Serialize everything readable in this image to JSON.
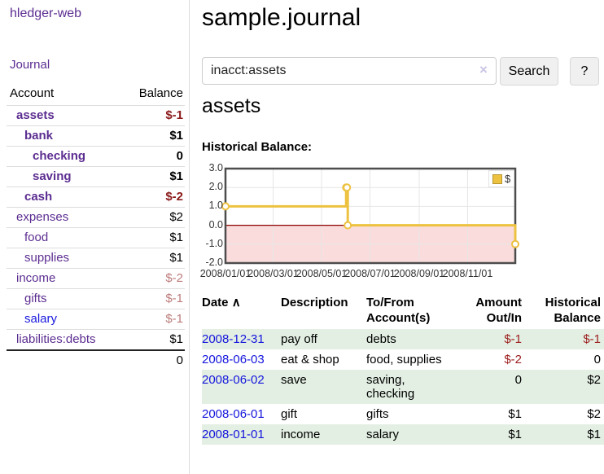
{
  "sidebar": {
    "brand": "hledger-web",
    "journal_link": "Journal",
    "table_header": {
      "account": "Account",
      "balance": "Balance"
    },
    "accounts": [
      {
        "name": "assets",
        "indent": 1,
        "bold": true,
        "link_color": "purple",
        "balance": "$-1",
        "balance_class": "neg-strong"
      },
      {
        "name": "bank",
        "indent": 2,
        "bold": true,
        "link_color": "purple",
        "balance": "$1",
        "balance_class": "strong"
      },
      {
        "name": "checking",
        "indent": 3,
        "bold": true,
        "link_color": "purple",
        "balance": "0",
        "balance_class": "strong"
      },
      {
        "name": "saving",
        "indent": 3,
        "bold": true,
        "link_color": "purple",
        "balance": "$1",
        "balance_class": "strong"
      },
      {
        "name": "cash",
        "indent": 2,
        "bold": true,
        "link_color": "purple",
        "balance": "$-2",
        "balance_class": "neg-strong"
      },
      {
        "name": "expenses",
        "indent": 1,
        "bold": false,
        "link_color": "purple",
        "balance": "$2",
        "balance_class": "plain"
      },
      {
        "name": "food",
        "indent": 2,
        "bold": false,
        "link_color": "purple",
        "balance": "$1",
        "balance_class": "plain"
      },
      {
        "name": "supplies",
        "indent": 2,
        "bold": false,
        "link_color": "purple",
        "balance": "$1",
        "balance_class": "plain"
      },
      {
        "name": "income",
        "indent": 1,
        "bold": false,
        "link_color": "purple",
        "balance": "$-2",
        "balance_class": "neg-soft"
      },
      {
        "name": "gifts",
        "indent": 2,
        "bold": false,
        "link_color": "purple",
        "balance": "$-1",
        "balance_class": "neg-soft"
      },
      {
        "name": "salary",
        "indent": 2,
        "bold": false,
        "link_color": "blue",
        "balance": "$-1",
        "balance_class": "neg-soft"
      },
      {
        "name": "liabilities:debts",
        "indent": 1,
        "bold": false,
        "link_color": "purple",
        "balance": "$1",
        "balance_class": "plain"
      }
    ],
    "total": "0"
  },
  "main": {
    "title": "sample.journal",
    "search": {
      "value": "inacct:assets",
      "clear_icon": "×",
      "search_button": "Search",
      "help_button": "?"
    },
    "account_title": "assets",
    "chart_label": "Historical Balance:"
  },
  "chart_data": {
    "type": "line",
    "step": true,
    "title": "Historical Balance:",
    "legend": {
      "label": "$",
      "position": "top-right"
    },
    "x_ticks": [
      {
        "label": "2008/01/01",
        "day": 0
      },
      {
        "label": "2008/03/01",
        "day": 60
      },
      {
        "label": "2008/05/01",
        "day": 121
      },
      {
        "label": "2008/07/01",
        "day": 182
      },
      {
        "label": "2008/09/01",
        "day": 244
      },
      {
        "label": "2008/11/01",
        "day": 305
      }
    ],
    "x_range_days": [
      0,
      365
    ],
    "y_ticks": [
      {
        "label": "3.0",
        "value": 3
      },
      {
        "label": "2.0",
        "value": 2
      },
      {
        "label": "1.0",
        "value": 1
      },
      {
        "label": "0.0",
        "value": 0
      },
      {
        "label": "-1.0",
        "value": -1
      },
      {
        "label": "-2.0",
        "value": -2
      }
    ],
    "ylim": [
      -2,
      3
    ],
    "series": [
      {
        "name": "$",
        "points": [
          {
            "date": "2008-01-01",
            "day": 0,
            "value": 1
          },
          {
            "date": "2008-06-01",
            "day": 152,
            "value": 2
          },
          {
            "date": "2008-06-02",
            "day": 153,
            "value": 2
          },
          {
            "date": "2008-06-03",
            "day": 154,
            "value": 0
          },
          {
            "date": "2008-12-31",
            "day": 365,
            "value": -1
          }
        ]
      }
    ],
    "colors": {
      "line": "#edc240",
      "marker_fill": "#ffffff",
      "negative_region": "#fbdcdc",
      "zero_line": "#8b0000",
      "grid": "#e6e6e6",
      "frame": "#4d4d4d"
    }
  },
  "register": {
    "header": {
      "date": "Date",
      "sort_icon": "∧",
      "description": "Description",
      "accounts": "To/From Account(s)",
      "amount": "Amount Out/In",
      "balance": "Historical Balance"
    },
    "rows": [
      {
        "date": "2008-12-31",
        "description": "pay off",
        "accounts": "debts",
        "amount": "$-1",
        "amount_neg": true,
        "balance": "$-1",
        "balance_neg": true,
        "shade": true
      },
      {
        "date": "2008-06-03",
        "description": "eat & shop",
        "accounts": "food, supplies",
        "amount": "$-2",
        "amount_neg": true,
        "balance": "0",
        "balance_neg": false,
        "shade": false
      },
      {
        "date": "2008-06-02",
        "description": "save",
        "accounts": "saving, checking",
        "amount": "0",
        "amount_neg": false,
        "balance": "$2",
        "balance_neg": false,
        "shade": true
      },
      {
        "date": "2008-06-01",
        "description": "gift",
        "accounts": "gifts",
        "amount": "$1",
        "amount_neg": false,
        "balance": "$2",
        "balance_neg": false,
        "shade": false
      },
      {
        "date": "2008-01-01",
        "description": "income",
        "accounts": "salary",
        "amount": "$1",
        "amount_neg": false,
        "balance": "$1",
        "balance_neg": false,
        "shade": true
      }
    ]
  }
}
